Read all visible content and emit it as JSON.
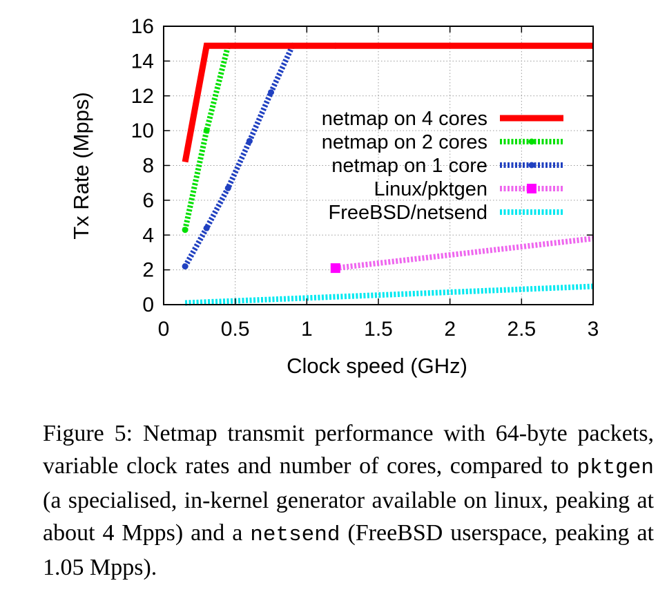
{
  "chart_data": {
    "type": "line",
    "title": "",
    "xlabel": "Clock speed (GHz)",
    "ylabel": "Tx Rate (Mpps)",
    "xlim": [
      0,
      3
    ],
    "ylim": [
      0,
      16
    ],
    "xticks": [
      0,
      0.5,
      1,
      1.5,
      2,
      2.5,
      3
    ],
    "xtick_labels": [
      "0",
      "0.5",
      "1",
      "1.5",
      "2",
      "2.5",
      "3"
    ],
    "yticks": [
      0,
      2,
      4,
      6,
      8,
      10,
      12,
      14,
      16
    ],
    "ytick_labels": [
      "0",
      "2",
      "4",
      "6",
      "8",
      "10",
      "12",
      "14",
      "16"
    ],
    "grid": true,
    "legend_position": "center-right",
    "series": [
      {
        "name": "netmap on 4 cores",
        "color": "#ff0000",
        "style": "solid",
        "marker": "none",
        "x": [
          0.15,
          0.3,
          3.0
        ],
        "y": [
          8.2,
          14.88,
          14.88
        ]
      },
      {
        "name": "netmap on 2 cores",
        "color": "#00e000",
        "style": "dotted",
        "marker": "circle",
        "x": [
          0.15,
          0.3,
          0.45,
          3.0
        ],
        "y": [
          4.3,
          10.0,
          14.88,
          14.88
        ]
      },
      {
        "name": "netmap on 1 core",
        "color": "#2040c0",
        "style": "dotted",
        "marker": "circle",
        "x": [
          0.15,
          0.3,
          0.45,
          0.6,
          0.75,
          0.9,
          1.2,
          3.0
        ],
        "y": [
          2.2,
          4.4,
          6.7,
          9.4,
          12.2,
          14.88,
          14.88,
          14.88
        ]
      },
      {
        "name": "Linux/pktgen",
        "color": "#ee66ee",
        "marker_color": "#ff00ff",
        "style": "dotted",
        "marker": "square",
        "x": [
          1.2,
          3.0
        ],
        "y": [
          2.1,
          3.8
        ]
      },
      {
        "name": "FreeBSD/netsend",
        "color": "#00e8f0",
        "style": "dotted",
        "marker": "none",
        "x": [
          0.15,
          3.0
        ],
        "y": [
          0.1,
          1.05
        ]
      }
    ]
  },
  "caption": {
    "text_1": "Figure 5: Netmap transmit performance with 64-byte packets, variable clock rates and number of cores, compared to ",
    "code_1": "pktgen",
    "text_2": " (a specialised, in-kernel generator available on linux, peaking at about 4 Mpps) and a ",
    "code_2": "netsend",
    "text_3": " (FreeBSD userspace, peaking at 1.05 Mpps)."
  }
}
